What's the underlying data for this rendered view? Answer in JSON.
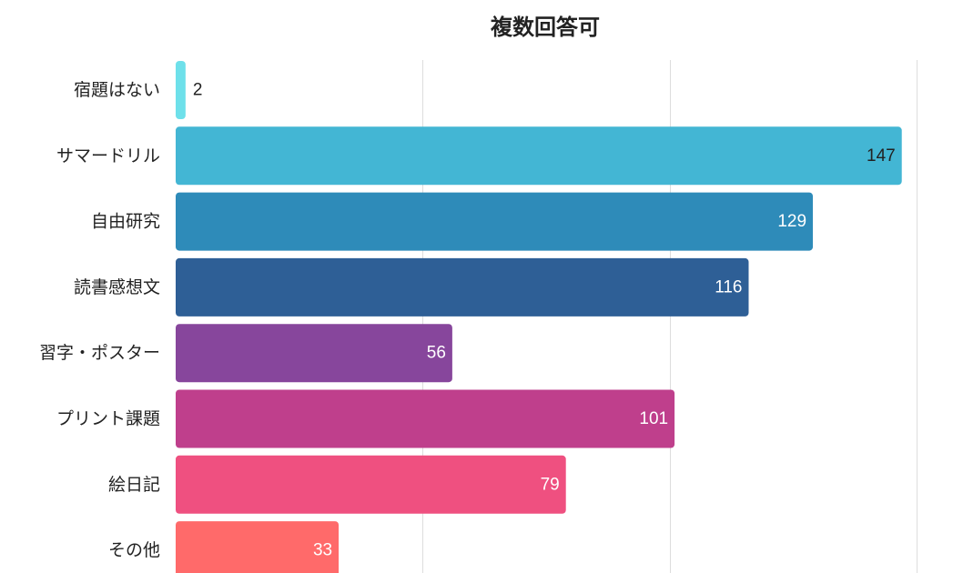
{
  "chart_data": {
    "type": "bar",
    "orientation": "horizontal",
    "title": "",
    "subtitle": "複数回答可",
    "categories": [
      "宿題はない",
      "サマードリル",
      "自由研究",
      "読書感想文",
      "習字・ポスター",
      "プリント課題",
      "絵日記",
      "その他"
    ],
    "values": [
      2,
      147,
      129,
      116,
      56,
      101,
      79,
      33
    ],
    "colors": [
      "#6ee0ea",
      "#43b6d4",
      "#2e8bb9",
      "#2e5f96",
      "#87469c",
      "#bf3f8c",
      "#ef5080",
      "#ff6a6a"
    ],
    "label_colors": [
      "#222222",
      "#222222",
      "#ffffff",
      "#ffffff",
      "#ffffff",
      "#ffffff",
      "#ffffff",
      "#ffffff"
    ],
    "xlim": [
      0,
      150
    ],
    "grid": true,
    "xlabel": "",
    "ylabel": ""
  }
}
